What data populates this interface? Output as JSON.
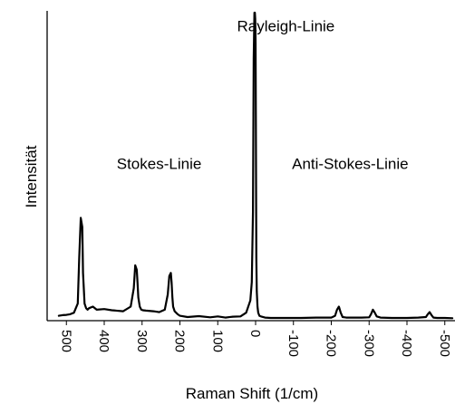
{
  "chart_data": {
    "type": "line",
    "title": "",
    "xlabel": "Raman Shift (1/cm)",
    "ylabel": "Intensität",
    "xlim": [
      520,
      -520
    ],
    "ylim": [
      0,
      1
    ],
    "grid": false,
    "x_tick_values": [
      500,
      400,
      300,
      200,
      100,
      0,
      -100,
      -200,
      -300,
      -400,
      -500
    ],
    "x_tick_labels": [
      "500",
      "400",
      "300",
      "200",
      "100",
      "0",
      "-100",
      "-200",
      "-300",
      "-400",
      "-500"
    ],
    "annotations": [
      {
        "text": "Rayleigh-Linie",
        "x": -80,
        "y": 0.94
      },
      {
        "text": "Stokes-Linie",
        "x": 255,
        "y": 0.49
      },
      {
        "text": "Anti-Stokes-Linie",
        "x": -250,
        "y": 0.49
      }
    ],
    "series": [
      {
        "color": "#000000",
        "x": [
          520,
          510,
          500,
          490,
          480,
          470,
          466,
          462,
          458,
          456,
          452,
          448,
          444,
          440,
          430,
          420,
          400,
          380,
          350,
          330,
          322,
          318,
          314,
          312,
          310,
          306,
          302,
          298,
          290,
          270,
          255,
          240,
          232,
          228,
          224,
          222,
          220,
          218,
          214,
          210,
          206,
          200,
          180,
          150,
          120,
          100,
          80,
          60,
          40,
          25,
          14,
          10,
          7,
          5,
          3,
          2,
          1,
          0,
          -1,
          -2,
          -3,
          -5,
          -7,
          -10,
          -14,
          -25,
          -40,
          -80,
          -120,
          -160,
          -200,
          -210,
          -215,
          -220,
          -225,
          -230,
          -240,
          -280,
          -300,
          -305,
          -310,
          -315,
          -320,
          -330,
          -360,
          -400,
          -430,
          -450,
          -455,
          -460,
          -465,
          -470,
          -480,
          -500,
          -520
        ],
        "y": [
          0.01,
          0.012,
          0.013,
          0.015,
          0.02,
          0.05,
          0.2,
          0.33,
          0.3,
          0.15,
          0.05,
          0.035,
          0.03,
          0.035,
          0.04,
          0.03,
          0.032,
          0.028,
          0.025,
          0.04,
          0.1,
          0.175,
          0.16,
          0.12,
          0.07,
          0.04,
          0.03,
          0.028,
          0.027,
          0.025,
          0.022,
          0.03,
          0.08,
          0.14,
          0.15,
          0.12,
          0.07,
          0.04,
          0.025,
          0.02,
          0.015,
          0.01,
          0.006,
          0.009,
          0.005,
          0.008,
          0.004,
          0.007,
          0.008,
          0.02,
          0.06,
          0.12,
          0.35,
          0.85,
          1.0,
          1.0,
          0.98,
          0.9,
          0.55,
          0.2,
          0.09,
          0.04,
          0.02,
          0.01,
          0.008,
          0.004,
          0.003,
          0.003,
          0.003,
          0.004,
          0.004,
          0.01,
          0.03,
          0.04,
          0.02,
          0.006,
          0.004,
          0.004,
          0.005,
          0.015,
          0.03,
          0.02,
          0.008,
          0.004,
          0.003,
          0.003,
          0.004,
          0.006,
          0.015,
          0.022,
          0.012,
          0.004,
          0.003,
          0.003,
          0.002
        ]
      }
    ]
  }
}
